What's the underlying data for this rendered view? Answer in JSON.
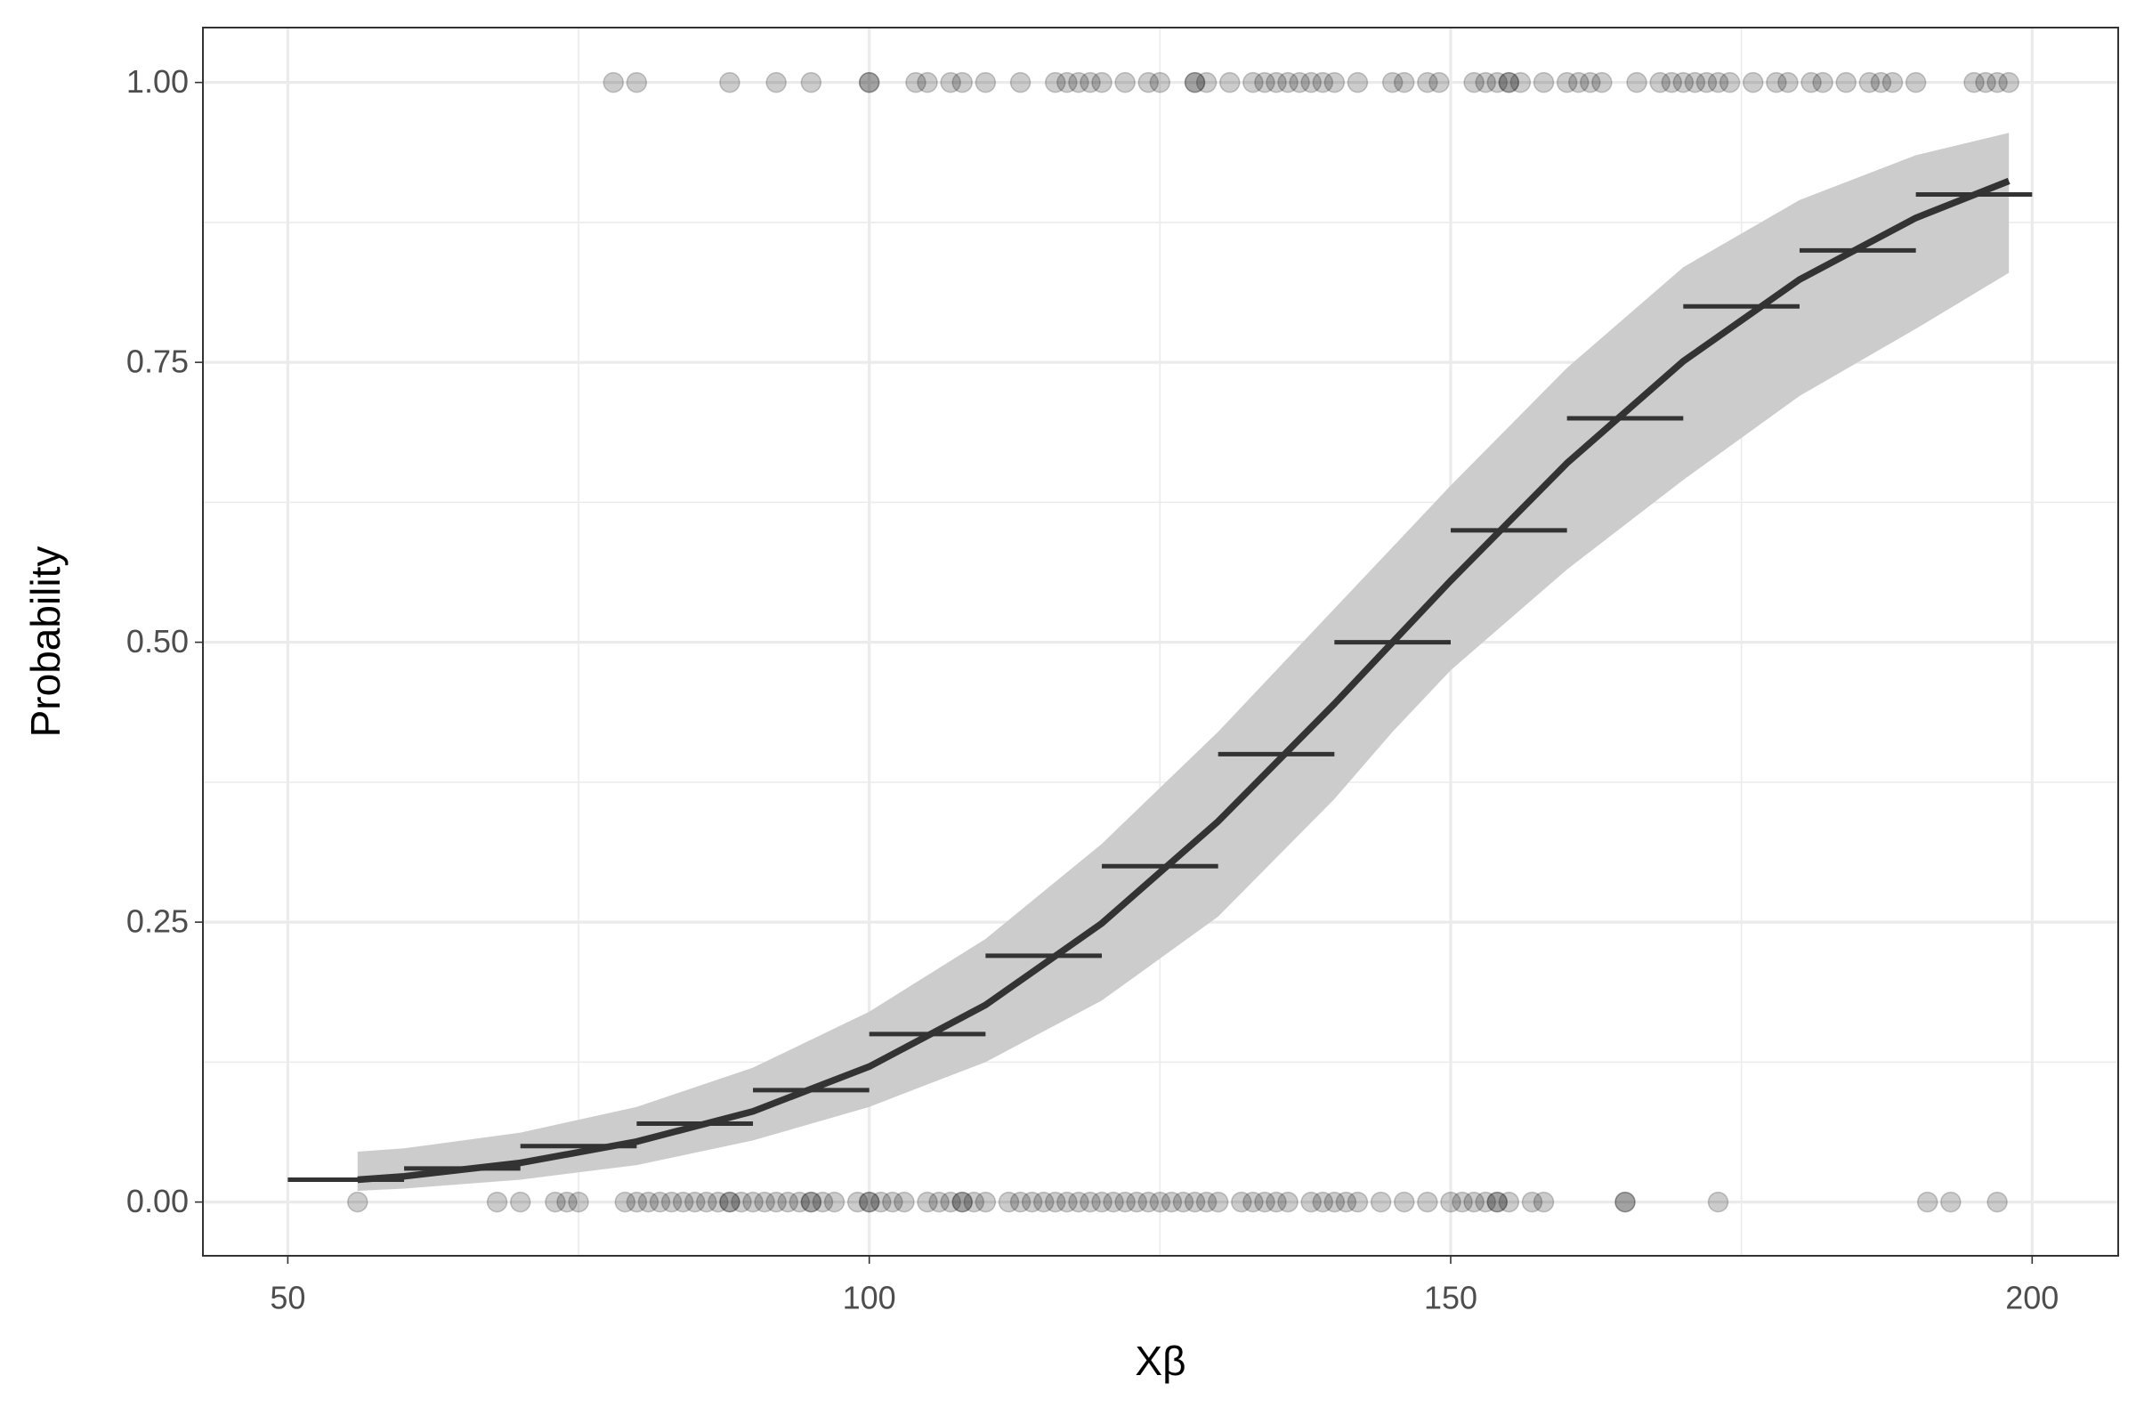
{
  "chart_data": {
    "type": "logistic",
    "x_label": "Xβ",
    "y_label": "Probability",
    "xlim": [
      42.7,
      207.4
    ],
    "ylim": [
      -0.048,
      1.049
    ],
    "xticks": [
      50,
      100,
      150,
      200
    ],
    "yticks": [
      {
        "value": 0,
        "label": "0.00"
      },
      {
        "value": 0.25,
        "label": "0.25"
      },
      {
        "value": 0.5,
        "label": "0.50"
      },
      {
        "value": 0.75,
        "label": "0.75"
      },
      {
        "value": 1,
        "label": "1.00"
      }
    ],
    "x_minor_ticks": [
      75,
      125,
      175
    ],
    "y_minor_ticks": [
      0.125,
      0.375,
      0.625,
      0.875
    ],
    "grid": true,
    "points": {
      "color": "#000000",
      "opacity": 0.2,
      "x": [
        78,
        80,
        88,
        92,
        95,
        100,
        100,
        104,
        105,
        107,
        108,
        110,
        113,
        116,
        117,
        118,
        119,
        120,
        122,
        124,
        125,
        128,
        128,
        129,
        131,
        133,
        134,
        135,
        136,
        137,
        138,
        139,
        140,
        142,
        145,
        146,
        148,
        149,
        152,
        153,
        154,
        155,
        155,
        156,
        158,
        160,
        161,
        162,
        163,
        166,
        168,
        169,
        170,
        171,
        172,
        173,
        174,
        176,
        178,
        179,
        181,
        182,
        184,
        186,
        187,
        188,
        190,
        195,
        196,
        197,
        198,
        56,
        68,
        70,
        73,
        74,
        75,
        79,
        80,
        81,
        82,
        83,
        84,
        85,
        86,
        87,
        88,
        88,
        89,
        90,
        91,
        92,
        93,
        94,
        95,
        95,
        96,
        97,
        99,
        100,
        100,
        101,
        102,
        103,
        105,
        106,
        107,
        108,
        108,
        109,
        110,
        112,
        113,
        114,
        115,
        116,
        117,
        118,
        119,
        120,
        121,
        122,
        123,
        124,
        125,
        126,
        127,
        128,
        129,
        130,
        132,
        133,
        134,
        135,
        136,
        138,
        139,
        140,
        141,
        142,
        144,
        146,
        148,
        150,
        151,
        152,
        153,
        154,
        154,
        155,
        157,
        158,
        165,
        165,
        173,
        191,
        193,
        197
      ],
      "values": [
        1,
        1,
        1,
        1,
        1,
        1,
        1,
        1,
        1,
        1,
        1,
        1,
        1,
        1,
        1,
        1,
        1,
        1,
        1,
        1,
        1,
        1,
        1,
        1,
        1,
        1,
        1,
        1,
        1,
        1,
        1,
        1,
        1,
        1,
        1,
        1,
        1,
        1,
        1,
        1,
        1,
        1,
        1,
        1,
        1,
        1,
        1,
        1,
        1,
        1,
        1,
        1,
        1,
        1,
        1,
        1,
        1,
        1,
        1,
        1,
        1,
        1,
        1,
        1,
        1,
        1,
        1,
        1,
        1,
        1,
        1,
        0,
        0,
        0,
        0,
        0,
        0,
        0,
        0,
        0,
        0,
        0,
        0,
        0,
        0,
        0,
        0,
        0,
        0,
        0,
        0,
        0,
        0,
        0,
        0,
        0,
        0,
        0,
        0,
        0,
        0,
        0,
        0,
        0,
        0,
        0,
        0,
        0,
        0,
        0,
        0,
        0,
        0,
        0,
        0,
        0,
        0,
        0,
        0,
        0,
        0,
        0,
        0,
        0,
        0,
        0,
        0,
        0,
        0,
        0,
        0,
        0,
        0,
        0,
        0,
        0,
        0,
        0,
        0,
        0,
        0,
        0,
        0,
        0,
        0,
        0,
        0,
        0,
        0,
        0,
        0,
        0,
        0,
        0,
        0,
        0,
        0,
        0
      ]
    },
    "curve": {
      "color": "#333333",
      "band_color": "#cccccc",
      "x": [
        56,
        60,
        70,
        80,
        90,
        100,
        110,
        120,
        130,
        140,
        145,
        150,
        160,
        170,
        180,
        190,
        198
      ],
      "values": [
        0.02,
        0.023,
        0.035,
        0.054,
        0.081,
        0.121,
        0.176,
        0.249,
        0.34,
        0.445,
        0.5,
        0.555,
        0.66,
        0.751,
        0.824,
        0.879,
        0.912
      ],
      "lower": [
        0.01,
        0.012,
        0.02,
        0.033,
        0.055,
        0.085,
        0.125,
        0.18,
        0.255,
        0.36,
        0.42,
        0.475,
        0.565,
        0.645,
        0.72,
        0.78,
        0.83
      ],
      "upper": [
        0.045,
        0.048,
        0.062,
        0.085,
        0.12,
        0.17,
        0.235,
        0.32,
        0.42,
        0.53,
        0.585,
        0.64,
        0.745,
        0.835,
        0.895,
        0.935,
        0.955
      ]
    },
    "steps": {
      "color": "#333333",
      "x_start": [
        50,
        60,
        70,
        80,
        90,
        100,
        110,
        120,
        130,
        140,
        150,
        160,
        170,
        180,
        190
      ],
      "x_end": [
        60,
        70,
        80,
        90,
        100,
        110,
        120,
        130,
        140,
        150,
        160,
        170,
        180,
        190,
        200
      ],
      "values": [
        0.02,
        0.03,
        0.05,
        0.07,
        0.1,
        0.15,
        0.22,
        0.3,
        0.4,
        0.5,
        0.6,
        0.7,
        0.8,
        0.85,
        0.9
      ]
    }
  }
}
